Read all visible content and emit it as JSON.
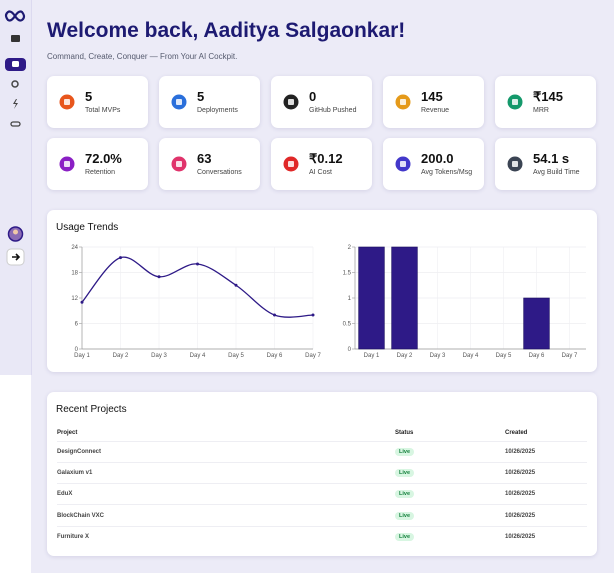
{
  "header": {
    "title": "Welcome back, Aaditya Salgaonkar!",
    "subtitle": "Command, Create, Conquer — From Your AI Cockpit."
  },
  "stats": [
    {
      "value": "5",
      "label": "Total MVPs"
    },
    {
      "value": "5",
      "label": "Deployments"
    },
    {
      "value": "0",
      "label": "GitHub Pushed"
    },
    {
      "value": "145",
      "label": "Revenue"
    },
    {
      "value": "₹145",
      "label": "MRR"
    },
    {
      "value": "72.0%",
      "label": "Retention"
    },
    {
      "value": "63",
      "label": "Conversations"
    },
    {
      "value": "₹0.12",
      "label": "AI Cost"
    },
    {
      "value": "200.0",
      "label": "Avg Tokens/Msg"
    },
    {
      "value": "54.1 s",
      "label": "Avg Build Time"
    }
  ],
  "usage_trends": {
    "title": "Usage Trends",
    "charts": [
      {
        "type": "line",
        "categories": [
          "Day 1",
          "Day 2",
          "Day 3",
          "Day 4",
          "Day 5",
          "Day 6",
          "Day 7"
        ],
        "values": [
          11,
          21.5,
          17,
          20,
          15,
          8,
          8
        ],
        "color": "#2e1a87",
        "ylim": [
          0,
          24
        ],
        "yticks": [
          0,
          6,
          12,
          18,
          24
        ],
        "grid": true
      },
      {
        "type": "bar",
        "categories": [
          "Day 1",
          "Day 2",
          "Day 3",
          "Day 4",
          "Day 5",
          "Day 6",
          "Day 7"
        ],
        "values": [
          2,
          2,
          0,
          0,
          0,
          1,
          0
        ],
        "color": "#2e1a87",
        "ylim": [
          0,
          2
        ],
        "yticks": [
          0,
          0.5,
          1,
          1.5,
          2
        ],
        "grid": true
      }
    ]
  },
  "recent_projects": {
    "title": "Recent Projects",
    "columns": [
      "Project",
      "Status",
      "Created"
    ],
    "rows": [
      [
        "DesignConnect",
        "Live",
        "10/26/2025"
      ],
      [
        "Galaxium v1",
        "Live",
        "10/26/2025"
      ],
      [
        "EduX",
        "Live",
        "10/26/2025"
      ],
      [
        "BlockChain VXC",
        "Live",
        "10/26/2025"
      ],
      [
        "Furniture X",
        "Live",
        "10/26/2025"
      ]
    ]
  }
}
